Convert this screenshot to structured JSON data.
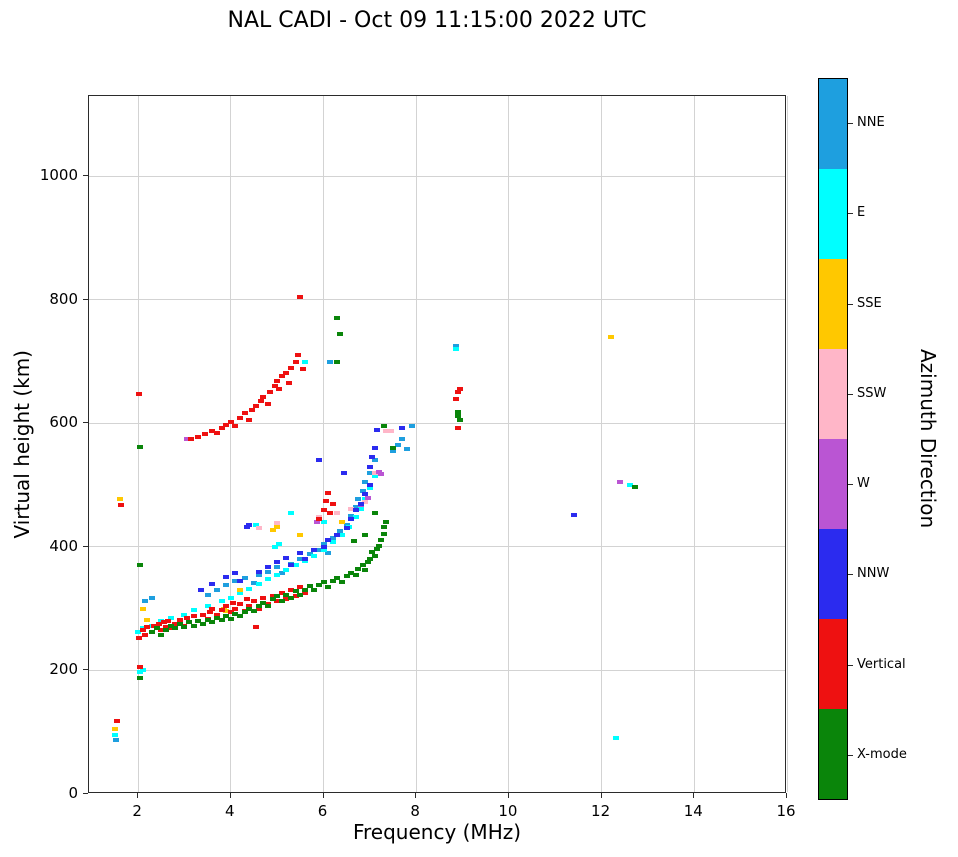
{
  "colorbar": {
    "label": "Azimuth Direction",
    "segments": [
      {
        "label": "NNE",
        "color": "#1E9FDF"
      },
      {
        "label": "E",
        "color": "#00FFFF"
      },
      {
        "label": "SSE",
        "color": "#FFC800"
      },
      {
        "label": "SSW",
        "color": "#FFB6C8"
      },
      {
        "label": "W",
        "color": "#BA55D3"
      },
      {
        "label": "NNW",
        "color": "#2B2BEF"
      },
      {
        "label": "Vertical",
        "color": "#EE1111"
      },
      {
        "label": "X-mode",
        "color": "#0A850A"
      }
    ]
  },
  "chart_data": {
    "type": "scatter",
    "title": "NAL CADI - Oct 09 11:15:00 2022 UTC",
    "xlabel": "Frequency (MHz)",
    "ylabel": "Virtual height (km)",
    "xlim": [
      0.94,
      16
    ],
    "ylim": [
      0,
      1130
    ],
    "xticks": [
      2,
      4,
      6,
      8,
      10,
      12,
      14,
      16
    ],
    "yticks": [
      0,
      200,
      400,
      600,
      800,
      1000
    ],
    "grid": true,
    "legend_position": "right-colorbar",
    "marker": "rect",
    "series": [
      {
        "name": "NNE",
        "color": "#1E9FDF",
        "points": [
          [
            2.15,
            312
          ],
          [
            2.3,
            318
          ],
          [
            3.5,
            322
          ],
          [
            3.7,
            330
          ],
          [
            3.9,
            338
          ],
          [
            4.1,
            345
          ],
          [
            4.3,
            350
          ],
          [
            4.5,
            342
          ],
          [
            4.6,
            355
          ],
          [
            4.8,
            360
          ],
          [
            5.0,
            368
          ],
          [
            5.1,
            358
          ],
          [
            5.3,
            372
          ],
          [
            5.5,
            380
          ],
          [
            5.7,
            388
          ],
          [
            5.9,
            395
          ],
          [
            6.0,
            405
          ],
          [
            6.1,
            390
          ],
          [
            6.2,
            415
          ],
          [
            6.35,
            425
          ],
          [
            6.5,
            435
          ],
          [
            6.6,
            450
          ],
          [
            6.7,
            465
          ],
          [
            6.75,
            478
          ],
          [
            6.85,
            490
          ],
          [
            6.9,
            505
          ],
          [
            7.0,
            520
          ],
          [
            7.1,
            540
          ],
          [
            7.5,
            555
          ],
          [
            7.6,
            565
          ],
          [
            7.7,
            575
          ],
          [
            7.8,
            558
          ],
          [
            7.9,
            595
          ],
          [
            8.85,
            725
          ],
          [
            5.3,
            690
          ],
          [
            6.15,
            700
          ],
          [
            1.52,
            87
          ]
        ]
      },
      {
        "name": "E",
        "color": "#00FFFF",
        "points": [
          [
            2.0,
            262
          ],
          [
            2.1,
            268
          ],
          [
            2.3,
            272
          ],
          [
            2.5,
            280
          ],
          [
            2.7,
            285
          ],
          [
            3.0,
            290
          ],
          [
            3.2,
            298
          ],
          [
            3.5,
            305
          ],
          [
            3.8,
            312
          ],
          [
            4.0,
            318
          ],
          [
            4.2,
            325
          ],
          [
            4.4,
            332
          ],
          [
            4.6,
            340
          ],
          [
            4.8,
            348
          ],
          [
            4.95,
            400
          ],
          [
            5.0,
            355
          ],
          [
            5.05,
            405
          ],
          [
            5.2,
            362
          ],
          [
            5.4,
            370
          ],
          [
            5.6,
            378
          ],
          [
            5.8,
            386
          ],
          [
            6.0,
            395
          ],
          [
            6.0,
            440
          ],
          [
            6.2,
            408
          ],
          [
            6.4,
            420
          ],
          [
            6.55,
            432
          ],
          [
            6.7,
            448
          ],
          [
            6.8,
            462
          ],
          [
            6.9,
            478
          ],
          [
            7.0,
            495
          ],
          [
            7.1,
            515
          ],
          [
            4.55,
            435
          ],
          [
            5.3,
            455
          ],
          [
            5.6,
            700
          ],
          [
            8.85,
            720
          ],
          [
            12.3,
            90
          ],
          [
            12.62,
            500
          ],
          [
            1.5,
            95
          ],
          [
            2.05,
            198
          ],
          [
            2.1,
            200
          ]
        ]
      },
      {
        "name": "SSE",
        "color": "#FFC800",
        "points": [
          [
            1.6,
            478
          ],
          [
            2.1,
            300
          ],
          [
            2.2,
            282
          ],
          [
            3.85,
            300
          ],
          [
            3.9,
            296
          ],
          [
            4.2,
            330
          ],
          [
            4.9,
            428
          ],
          [
            5.0,
            432
          ],
          [
            5.5,
            420
          ],
          [
            6.4,
            440
          ],
          [
            12.2,
            740
          ],
          [
            1.5,
            105
          ]
        ]
      },
      {
        "name": "SSW",
        "color": "#FFB6C8",
        "points": [
          [
            4.6,
            430
          ],
          [
            5.0,
            438
          ],
          [
            5.9,
            448
          ],
          [
            6.3,
            455
          ],
          [
            6.6,
            462
          ],
          [
            6.9,
            472
          ],
          [
            7.1,
            520
          ],
          [
            7.3,
            595
          ],
          [
            7.35,
            588
          ],
          [
            7.45,
            588
          ]
        ]
      },
      {
        "name": "W",
        "color": "#BA55D3",
        "points": [
          [
            3.05,
            575
          ],
          [
            5.85,
            440
          ],
          [
            6.8,
            468
          ],
          [
            6.95,
            480
          ],
          [
            7.2,
            522
          ],
          [
            7.25,
            518
          ],
          [
            12.4,
            505
          ]
        ]
      },
      {
        "name": "NNW",
        "color": "#2B2BEF",
        "points": [
          [
            3.35,
            330
          ],
          [
            3.6,
            340
          ],
          [
            3.9,
            352
          ],
          [
            4.1,
            358
          ],
          [
            4.2,
            345
          ],
          [
            4.35,
            432
          ],
          [
            4.4,
            436
          ],
          [
            4.6,
            360
          ],
          [
            4.8,
            368
          ],
          [
            5.0,
            375
          ],
          [
            5.2,
            382
          ],
          [
            5.3,
            370
          ],
          [
            5.5,
            390
          ],
          [
            5.6,
            380
          ],
          [
            5.8,
            395
          ],
          [
            5.9,
            540
          ],
          [
            6.0,
            400
          ],
          [
            6.1,
            412
          ],
          [
            6.3,
            420
          ],
          [
            6.45,
            520
          ],
          [
            6.5,
            430
          ],
          [
            6.6,
            445
          ],
          [
            6.7,
            460
          ],
          [
            6.8,
            470
          ],
          [
            6.9,
            485
          ],
          [
            7.0,
            500
          ],
          [
            7.0,
            530
          ],
          [
            7.05,
            545
          ],
          [
            7.1,
            560
          ],
          [
            7.15,
            590
          ],
          [
            7.7,
            592
          ],
          [
            11.4,
            452
          ]
        ]
      },
      {
        "name": "Vertical",
        "color": "#EE1111",
        "points": [
          [
            2.1,
            265
          ],
          [
            2.15,
            258
          ],
          [
            2.2,
            270
          ],
          [
            2.3,
            262
          ],
          [
            2.35,
            272
          ],
          [
            2.4,
            268
          ],
          [
            2.45,
            275
          ],
          [
            2.5,
            265
          ],
          [
            2.55,
            278
          ],
          [
            2.6,
            270
          ],
          [
            2.65,
            280
          ],
          [
            2.7,
            268
          ],
          [
            2.8,
            275
          ],
          [
            2.9,
            282
          ],
          [
            3.0,
            272
          ],
          [
            3.05,
            285
          ],
          [
            3.1,
            278
          ],
          [
            3.2,
            288
          ],
          [
            3.3,
            280
          ],
          [
            3.4,
            290
          ],
          [
            3.5,
            284
          ],
          [
            3.55,
            295
          ],
          [
            3.6,
            300
          ],
          [
            3.7,
            290
          ],
          [
            3.8,
            298
          ],
          [
            3.9,
            305
          ],
          [
            4.0,
            295
          ],
          [
            4.05,
            310
          ],
          [
            4.1,
            300
          ],
          [
            4.2,
            308
          ],
          [
            4.3,
            297
          ],
          [
            4.35,
            315
          ],
          [
            4.4,
            305
          ],
          [
            4.5,
            312
          ],
          [
            4.55,
            270
          ],
          [
            4.6,
            300
          ],
          [
            4.7,
            318
          ],
          [
            4.8,
            308
          ],
          [
            4.9,
            320
          ],
          [
            5.0,
            312
          ],
          [
            5.1,
            325
          ],
          [
            5.2,
            316
          ],
          [
            5.3,
            330
          ],
          [
            5.4,
            321
          ],
          [
            5.5,
            335
          ],
          [
            5.6,
            326
          ],
          [
            5.9,
            445
          ],
          [
            6.0,
            460
          ],
          [
            6.05,
            475
          ],
          [
            6.1,
            488
          ],
          [
            6.15,
            455
          ],
          [
            6.2,
            470
          ],
          [
            3.15,
            575
          ],
          [
            3.3,
            578
          ],
          [
            3.45,
            582
          ],
          [
            3.6,
            588
          ],
          [
            3.7,
            584
          ],
          [
            3.8,
            592
          ],
          [
            3.9,
            598
          ],
          [
            4.0,
            603
          ],
          [
            4.1,
            595
          ],
          [
            4.2,
            608
          ],
          [
            4.3,
            616
          ],
          [
            4.4,
            606
          ],
          [
            4.45,
            622
          ],
          [
            4.55,
            628
          ],
          [
            4.65,
            636
          ],
          [
            4.7,
            643
          ],
          [
            4.8,
            632
          ],
          [
            4.85,
            650
          ],
          [
            4.95,
            660
          ],
          [
            5.0,
            668
          ],
          [
            5.05,
            655
          ],
          [
            5.1,
            676
          ],
          [
            5.2,
            682
          ],
          [
            5.25,
            665
          ],
          [
            5.3,
            690
          ],
          [
            5.4,
            700
          ],
          [
            5.45,
            710
          ],
          [
            5.5,
            805
          ],
          [
            5.55,
            688
          ],
          [
            8.9,
            650
          ],
          [
            8.85,
            640
          ],
          [
            8.9,
            592
          ],
          [
            8.95,
            655
          ],
          [
            2.02,
            648
          ],
          [
            2.02,
            252
          ],
          [
            2.03,
            205
          ],
          [
            1.55,
            118
          ],
          [
            1.62,
            468
          ]
        ]
      },
      {
        "name": "X-mode",
        "color": "#0A850A",
        "points": [
          [
            2.3,
            262
          ],
          [
            2.4,
            268
          ],
          [
            2.5,
            258
          ],
          [
            2.6,
            265
          ],
          [
            2.7,
            272
          ],
          [
            2.8,
            268
          ],
          [
            2.9,
            275
          ],
          [
            3.0,
            270
          ],
          [
            3.1,
            278
          ],
          [
            3.2,
            272
          ],
          [
            3.3,
            280
          ],
          [
            3.4,
            275
          ],
          [
            3.5,
            282
          ],
          [
            3.6,
            278
          ],
          [
            3.7,
            285
          ],
          [
            3.8,
            281
          ],
          [
            3.9,
            288
          ],
          [
            4.0,
            284
          ],
          [
            4.1,
            292
          ],
          [
            4.2,
            288
          ],
          [
            4.3,
            295
          ],
          [
            4.4,
            300
          ],
          [
            4.5,
            296
          ],
          [
            4.6,
            305
          ],
          [
            4.7,
            310
          ],
          [
            4.8,
            304
          ],
          [
            4.9,
            315
          ],
          [
            5.0,
            320
          ],
          [
            5.1,
            312
          ],
          [
            5.2,
            322
          ],
          [
            5.3,
            317
          ],
          [
            5.4,
            328
          ],
          [
            5.5,
            322
          ],
          [
            5.6,
            331
          ],
          [
            5.7,
            336
          ],
          [
            5.8,
            330
          ],
          [
            5.9,
            338
          ],
          [
            6.0,
            343
          ],
          [
            6.1,
            335
          ],
          [
            6.2,
            345
          ],
          [
            6.3,
            350
          ],
          [
            6.4,
            344
          ],
          [
            6.5,
            353
          ],
          [
            6.6,
            358
          ],
          [
            6.65,
            410
          ],
          [
            6.7,
            355
          ],
          [
            6.75,
            365
          ],
          [
            6.85,
            370
          ],
          [
            6.9,
            362
          ],
          [
            6.9,
            420
          ],
          [
            6.95,
            376
          ],
          [
            7.0,
            381
          ],
          [
            7.05,
            391
          ],
          [
            7.1,
            385
          ],
          [
            7.1,
            455
          ],
          [
            7.15,
            396
          ],
          [
            7.2,
            401
          ],
          [
            7.25,
            411
          ],
          [
            7.3,
            421
          ],
          [
            7.3,
            432
          ],
          [
            7.35,
            441
          ],
          [
            6.3,
            770
          ],
          [
            6.35,
            745
          ],
          [
            6.3,
            700
          ],
          [
            7.3,
            595
          ],
          [
            7.5,
            560
          ],
          [
            8.9,
            612
          ],
          [
            8.9,
            618
          ],
          [
            8.95,
            605
          ],
          [
            12.72,
            497
          ],
          [
            2.04,
            370
          ],
          [
            2.04,
            562
          ],
          [
            2.03,
            188
          ]
        ]
      }
    ]
  }
}
